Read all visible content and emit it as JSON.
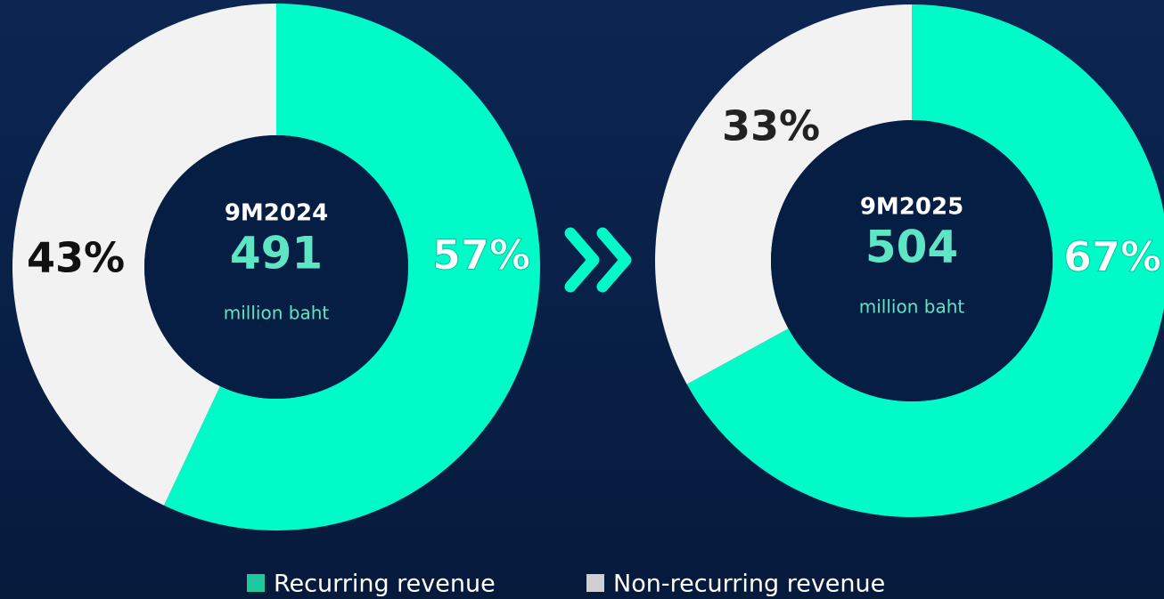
{
  "chart_data": [
    {
      "type": "donut",
      "categories": [
        "Recurring revenue",
        "Non-recurring revenue"
      ],
      "values": [
        57,
        43
      ],
      "value_labels": [
        "57%",
        "43%"
      ],
      "colors": [
        "#00fbc9",
        "#f2f2f3"
      ],
      "center": {
        "period": "9M2024",
        "total": 491,
        "unit": "million baht"
      }
    },
    {
      "type": "donut",
      "categories": [
        "Recurring revenue",
        "Non-recurring revenue"
      ],
      "values": [
        67,
        33
      ],
      "value_labels": [
        "67%",
        "33%"
      ],
      "colors": [
        "#00fbc9",
        "#f2f2f3"
      ],
      "center": {
        "period": "9M2025",
        "total": 504,
        "unit": "million baht"
      }
    }
  ]
}
